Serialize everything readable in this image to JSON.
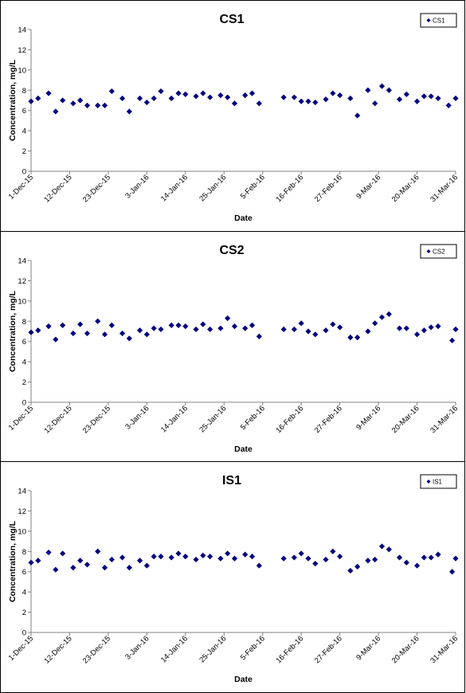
{
  "colors": {
    "marker": "#000080",
    "axis": "#808080",
    "frame": "#000000"
  },
  "chart_data": [
    {
      "type": "scatter",
      "title": "CS1",
      "xlabel": "Date",
      "ylabel": "Concentration, mg/L",
      "ylim": [
        0,
        14
      ],
      "yticks": [
        0,
        2,
        4,
        6,
        8,
        10,
        12,
        14
      ],
      "xlim": [
        "2015-12-01",
        "2016-03-31"
      ],
      "xtick_labels": [
        "1-Dec-15",
        "12-Dec-15",
        "23-Dec-15",
        "3-Jan-16",
        "14-Jan-16",
        "25-Jan-16",
        "5-Feb-16",
        "16-Feb-16",
        "27-Feb-16",
        "9-Mar-16",
        "20-Mar-16",
        "31-Mar-16"
      ],
      "grid": false,
      "legend": "top-right",
      "series": [
        {
          "name": "CS1",
          "points": [
            [
              "2015-12-01",
              6.9
            ],
            [
              "2015-12-03",
              7.2
            ],
            [
              "2015-12-06",
              7.7
            ],
            [
              "2015-12-08",
              5.9
            ],
            [
              "2015-12-10",
              7.0
            ],
            [
              "2015-12-13",
              6.7
            ],
            [
              "2015-12-15",
              7.0
            ],
            [
              "2015-12-17",
              6.5
            ],
            [
              "2015-12-20",
              6.5
            ],
            [
              "2015-12-22",
              6.5
            ],
            [
              "2015-12-24",
              7.9
            ],
            [
              "2015-12-27",
              7.2
            ],
            [
              "2015-12-29",
              5.9
            ],
            [
              "2016-01-01",
              7.2
            ],
            [
              "2016-01-03",
              6.8
            ],
            [
              "2016-01-05",
              7.2
            ],
            [
              "2016-01-07",
              7.9
            ],
            [
              "2016-01-10",
              7.2
            ],
            [
              "2016-01-12",
              7.7
            ],
            [
              "2016-01-14",
              7.6
            ],
            [
              "2016-01-17",
              7.4
            ],
            [
              "2016-01-19",
              7.7
            ],
            [
              "2016-01-21",
              7.3
            ],
            [
              "2016-01-24",
              7.5
            ],
            [
              "2016-01-26",
              7.3
            ],
            [
              "2016-01-28",
              6.7
            ],
            [
              "2016-01-31",
              7.5
            ],
            [
              "2016-02-02",
              7.7
            ],
            [
              "2016-02-04",
              6.7
            ],
            [
              "2016-02-11",
              7.3
            ],
            [
              "2016-02-14",
              7.3
            ],
            [
              "2016-02-16",
              6.9
            ],
            [
              "2016-02-18",
              6.9
            ],
            [
              "2016-02-20",
              6.8
            ],
            [
              "2016-02-23",
              7.1
            ],
            [
              "2016-02-25",
              7.7
            ],
            [
              "2016-02-27",
              7.5
            ],
            [
              "2016-03-01",
              7.2
            ],
            [
              "2016-03-03",
              5.5
            ],
            [
              "2016-03-06",
              8.0
            ],
            [
              "2016-03-08",
              6.7
            ],
            [
              "2016-03-10",
              8.4
            ],
            [
              "2016-03-12",
              8.0
            ],
            [
              "2016-03-15",
              7.1
            ],
            [
              "2016-03-17",
              7.6
            ],
            [
              "2016-03-20",
              6.9
            ],
            [
              "2016-03-22",
              7.4
            ],
            [
              "2016-03-24",
              7.4
            ],
            [
              "2016-03-26",
              7.2
            ],
            [
              "2016-03-29",
              6.5
            ],
            [
              "2016-03-31",
              7.2
            ]
          ]
        }
      ]
    },
    {
      "type": "scatter",
      "title": "CS2",
      "xlabel": "Date",
      "ylabel": "Concentration, mg/L",
      "ylim": [
        0,
        14
      ],
      "yticks": [
        0,
        2,
        4,
        6,
        8,
        10,
        12,
        14
      ],
      "xlim": [
        "2015-12-01",
        "2016-03-31"
      ],
      "xtick_labels": [
        "1-Dec-15",
        "12-Dec-15",
        "23-Dec-15",
        "3-Jan-16",
        "14-Jan-16",
        "25-Jan-16",
        "5-Feb-16",
        "16-Feb-16",
        "27-Feb-16",
        "9-Mar-16",
        "20-Mar-16",
        "31-Mar-16"
      ],
      "grid": false,
      "legend": "top-right",
      "series": [
        {
          "name": "CS2",
          "points": [
            [
              "2015-12-01",
              6.9
            ],
            [
              "2015-12-03",
              7.1
            ],
            [
              "2015-12-06",
              7.5
            ],
            [
              "2015-12-08",
              6.2
            ],
            [
              "2015-12-10",
              7.6
            ],
            [
              "2015-12-13",
              6.8
            ],
            [
              "2015-12-15",
              7.7
            ],
            [
              "2015-12-17",
              6.8
            ],
            [
              "2015-12-20",
              8.0
            ],
            [
              "2015-12-22",
              6.7
            ],
            [
              "2015-12-24",
              7.6
            ],
            [
              "2015-12-27",
              6.8
            ],
            [
              "2015-12-29",
              6.3
            ],
            [
              "2016-01-01",
              7.1
            ],
            [
              "2016-01-03",
              6.7
            ],
            [
              "2016-01-05",
              7.3
            ],
            [
              "2016-01-07",
              7.2
            ],
            [
              "2016-01-10",
              7.6
            ],
            [
              "2016-01-12",
              7.6
            ],
            [
              "2016-01-14",
              7.5
            ],
            [
              "2016-01-17",
              7.2
            ],
            [
              "2016-01-19",
              7.7
            ],
            [
              "2016-01-21",
              7.2
            ],
            [
              "2016-01-24",
              7.3
            ],
            [
              "2016-01-26",
              8.3
            ],
            [
              "2016-01-28",
              7.5
            ],
            [
              "2016-01-31",
              7.3
            ],
            [
              "2016-02-02",
              7.6
            ],
            [
              "2016-02-04",
              6.5
            ],
            [
              "2016-02-11",
              7.2
            ],
            [
              "2016-02-14",
              7.2
            ],
            [
              "2016-02-16",
              7.8
            ],
            [
              "2016-02-18",
              7.0
            ],
            [
              "2016-02-20",
              6.7
            ],
            [
              "2016-02-23",
              7.1
            ],
            [
              "2016-02-25",
              7.7
            ],
            [
              "2016-02-27",
              7.4
            ],
            [
              "2016-03-01",
              6.4
            ],
            [
              "2016-03-03",
              6.4
            ],
            [
              "2016-03-06",
              7.0
            ],
            [
              "2016-03-08",
              7.8
            ],
            [
              "2016-03-10",
              8.4
            ],
            [
              "2016-03-12",
              8.7
            ],
            [
              "2016-03-15",
              7.3
            ],
            [
              "2016-03-17",
              7.3
            ],
            [
              "2016-03-20",
              6.7
            ],
            [
              "2016-03-22",
              7.1
            ],
            [
              "2016-03-24",
              7.4
            ],
            [
              "2016-03-26",
              7.5
            ],
            [
              "2016-03-30",
              6.1
            ],
            [
              "2016-03-31",
              7.2
            ]
          ]
        }
      ]
    },
    {
      "type": "scatter",
      "title": "IS1",
      "xlabel": "Date",
      "ylabel": "Concentration, mg/L",
      "ylim": [
        0,
        14
      ],
      "yticks": [
        0,
        2,
        4,
        6,
        8,
        10,
        12,
        14
      ],
      "xlim": [
        "2015-12-01",
        "2016-03-31"
      ],
      "xtick_labels": [
        "1-Dec-15",
        "12-Dec-15",
        "23-Dec-15",
        "3-Jan-16",
        "14-Jan-16",
        "25-Jan-16",
        "5-Feb-16",
        "16-Feb-16",
        "27-Feb-16",
        "9-Mar-16",
        "20-Mar-16",
        "31-Mar-16"
      ],
      "grid": false,
      "legend": "top-right",
      "series": [
        {
          "name": "IS1",
          "points": [
            [
              "2015-12-01",
              6.9
            ],
            [
              "2015-12-03",
              7.1
            ],
            [
              "2015-12-06",
              7.9
            ],
            [
              "2015-12-08",
              6.2
            ],
            [
              "2015-12-10",
              7.8
            ],
            [
              "2015-12-13",
              6.4
            ],
            [
              "2015-12-15",
              7.1
            ],
            [
              "2015-12-17",
              6.7
            ],
            [
              "2015-12-20",
              8.0
            ],
            [
              "2015-12-22",
              6.4
            ],
            [
              "2015-12-24",
              7.2
            ],
            [
              "2015-12-27",
              7.4
            ],
            [
              "2015-12-29",
              6.4
            ],
            [
              "2016-01-01",
              7.1
            ],
            [
              "2016-01-03",
              6.6
            ],
            [
              "2016-01-05",
              7.5
            ],
            [
              "2016-01-07",
              7.5
            ],
            [
              "2016-01-10",
              7.4
            ],
            [
              "2016-01-12",
              7.8
            ],
            [
              "2016-01-14",
              7.5
            ],
            [
              "2016-01-17",
              7.2
            ],
            [
              "2016-01-19",
              7.6
            ],
            [
              "2016-01-21",
              7.5
            ],
            [
              "2016-01-24",
              7.3
            ],
            [
              "2016-01-26",
              7.8
            ],
            [
              "2016-01-28",
              7.3
            ],
            [
              "2016-01-31",
              7.7
            ],
            [
              "2016-02-02",
              7.5
            ],
            [
              "2016-02-04",
              6.6
            ],
            [
              "2016-02-11",
              7.3
            ],
            [
              "2016-02-14",
              7.4
            ],
            [
              "2016-02-16",
              7.8
            ],
            [
              "2016-02-18",
              7.3
            ],
            [
              "2016-02-20",
              6.8
            ],
            [
              "2016-02-23",
              7.2
            ],
            [
              "2016-02-25",
              8.0
            ],
            [
              "2016-02-27",
              7.5
            ],
            [
              "2016-03-01",
              6.1
            ],
            [
              "2016-03-03",
              6.5
            ],
            [
              "2016-03-06",
              7.1
            ],
            [
              "2016-03-08",
              7.2
            ],
            [
              "2016-03-10",
              8.5
            ],
            [
              "2016-03-12",
              8.2
            ],
            [
              "2016-03-15",
              7.4
            ],
            [
              "2016-03-17",
              6.9
            ],
            [
              "2016-03-20",
              6.6
            ],
            [
              "2016-03-22",
              7.4
            ],
            [
              "2016-03-24",
              7.4
            ],
            [
              "2016-03-26",
              7.7
            ],
            [
              "2016-03-30",
              6.0
            ],
            [
              "2016-03-31",
              7.3
            ]
          ]
        }
      ]
    }
  ]
}
